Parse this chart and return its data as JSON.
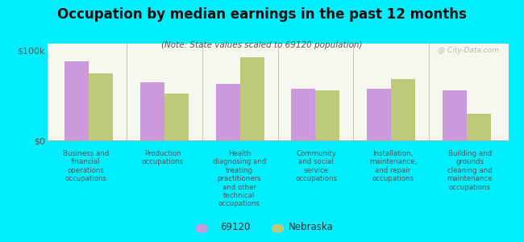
{
  "title": "Occupation by median earnings in the past 12 months",
  "subtitle": "(Note: State values scaled to 69120 population)",
  "background_color": "#00eeff",
  "plot_bg_top": "#e8f0d0",
  "plot_bg_bottom": "#f5f8ee",
  "categories": [
    "Business and\nfinancial\noperations\noccupations",
    "Production\noccupations",
    "Health\ndiagnosing and\ntreating\npractitioners\nand other\ntechnical\noccupations",
    "Community\nand social\nservice\noccupations",
    "Installation,\nmaintenance,\nand repair\noccupations",
    "Building and\ngrounds\ncleaning and\nmaintenance\noccupations"
  ],
  "values_69120": [
    88000,
    65000,
    63000,
    58000,
    58000,
    56000
  ],
  "values_nebraska": [
    75000,
    52000,
    93000,
    56000,
    68000,
    30000
  ],
  "color_69120": "#cc99dd",
  "color_nebraska": "#bec97a",
  "yticks": [
    0,
    100000
  ],
  "ytick_labels": [
    "$0",
    "$100k"
  ],
  "ylim": [
    0,
    108000
  ],
  "legend_label_1": "69120",
  "legend_label_2": "Nebraska",
  "watermark": "@ City-Data.com"
}
